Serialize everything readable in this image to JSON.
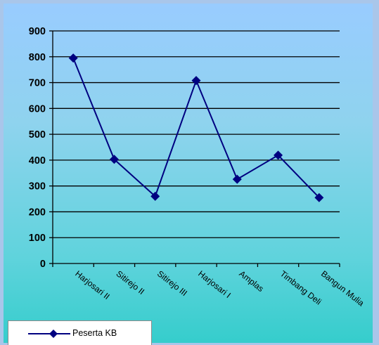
{
  "chart_data": {
    "type": "line",
    "categories": [
      "Harjosari II",
      "Sitirejo II",
      "Sitirejo III",
      "Harjosari I",
      "Amplas",
      "Timbang Deli",
      "Bangun Mulia"
    ],
    "series": [
      {
        "name": "Peserta KB",
        "values": [
          795,
          403,
          260,
          708,
          326,
          419,
          255
        ]
      }
    ],
    "ylim": [
      0,
      900
    ],
    "yticks": [
      0,
      100,
      200,
      300,
      400,
      500,
      600,
      700,
      800,
      900
    ],
    "grid": true,
    "legend": "bottom-left",
    "line_color": "#000080",
    "marker": "diamond"
  },
  "legend": {
    "label": "Peserta KB"
  }
}
